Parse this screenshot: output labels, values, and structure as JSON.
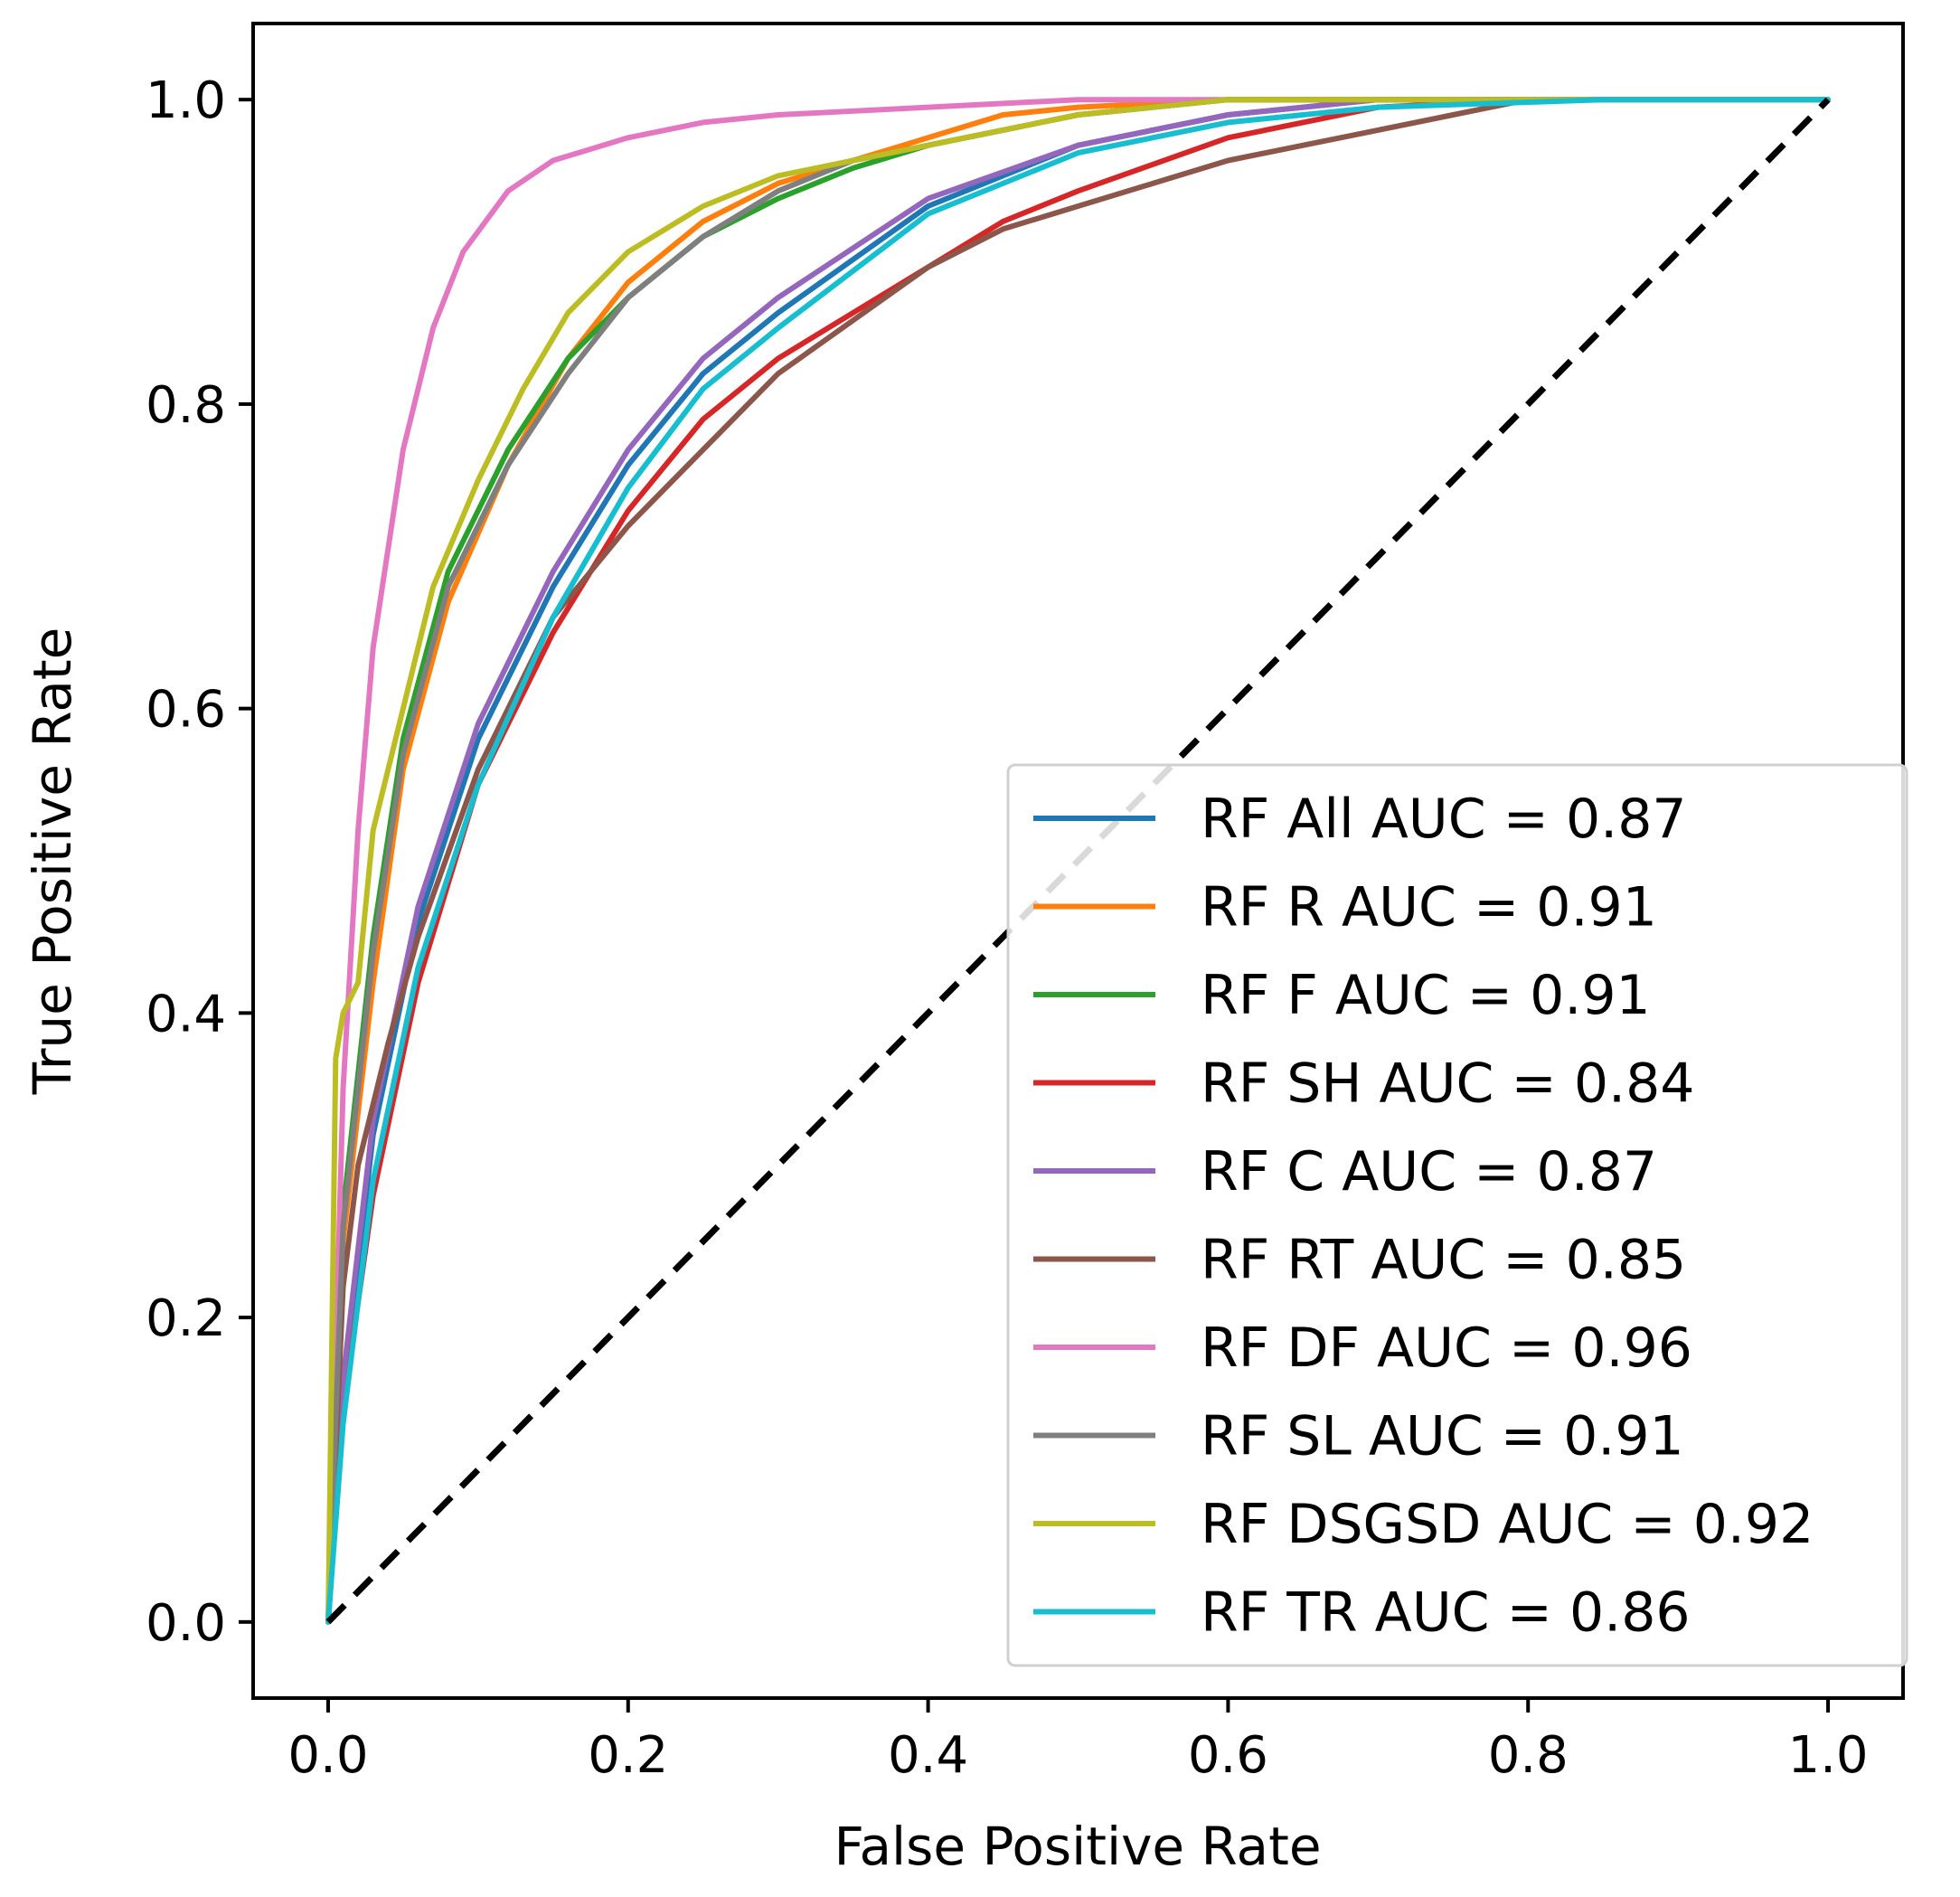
{
  "chart_data": {
    "type": "line",
    "title": "",
    "xlabel": "False Positive Rate",
    "ylabel": "True Positive Rate",
    "xlim": [
      -0.05,
      1.05
    ],
    "ylim": [
      -0.05,
      1.05
    ],
    "xticks": [
      0.0,
      0.2,
      0.4,
      0.6,
      0.8,
      1.0
    ],
    "yticks": [
      0.0,
      0.2,
      0.4,
      0.6,
      0.8,
      1.0
    ],
    "xtick_labels": [
      "0.0",
      "0.2",
      "0.4",
      "0.6",
      "0.8",
      "1.0"
    ],
    "ytick_labels": [
      "0.0",
      "0.2",
      "0.4",
      "0.6",
      "0.8",
      "1.0"
    ],
    "grid": false,
    "legend_position": "bottom-right",
    "reference_line": {
      "name": "chance",
      "x": [
        0,
        1
      ],
      "y": [
        0,
        1
      ],
      "color": "#000000",
      "style": "dashed"
    },
    "series": [
      {
        "name": "RF All AUC = 0.87",
        "color": "#1f77b4",
        "x": [
          0,
          0.01,
          0.03,
          0.06,
          0.1,
          0.15,
          0.2,
          0.25,
          0.3,
          0.4,
          0.5,
          0.6,
          0.7,
          0.85,
          1.0
        ],
        "y": [
          0,
          0.15,
          0.32,
          0.46,
          0.58,
          0.68,
          0.76,
          0.82,
          0.86,
          0.93,
          0.97,
          0.99,
          1.0,
          1.0,
          1.0
        ]
      },
      {
        "name": "RF R AUC = 0.91",
        "color": "#ff7f0e",
        "x": [
          0,
          0.01,
          0.03,
          0.05,
          0.08,
          0.12,
          0.16,
          0.2,
          0.25,
          0.3,
          0.35,
          0.4,
          0.45,
          0.5,
          0.6,
          1.0
        ],
        "y": [
          0,
          0.25,
          0.42,
          0.56,
          0.67,
          0.76,
          0.83,
          0.88,
          0.92,
          0.945,
          0.96,
          0.975,
          0.99,
          0.995,
          1.0,
          1.0
        ]
      },
      {
        "name": "RF F AUC = 0.91",
        "color": "#2ca02c",
        "x": [
          0,
          0.01,
          0.03,
          0.05,
          0.08,
          0.12,
          0.16,
          0.2,
          0.25,
          0.3,
          0.35,
          0.4,
          0.45,
          0.5,
          0.6,
          1.0
        ],
        "y": [
          0,
          0.27,
          0.45,
          0.58,
          0.69,
          0.77,
          0.83,
          0.87,
          0.91,
          0.935,
          0.955,
          0.97,
          0.98,
          0.99,
          1.0,
          1.0
        ]
      },
      {
        "name": "RF SH AUC = 0.84",
        "color": "#d62728",
        "x": [
          0,
          0.01,
          0.03,
          0.06,
          0.1,
          0.15,
          0.2,
          0.25,
          0.3,
          0.35,
          0.4,
          0.45,
          0.5,
          0.6,
          0.7,
          0.8,
          1.0
        ],
        "y": [
          0,
          0.14,
          0.28,
          0.42,
          0.55,
          0.65,
          0.73,
          0.79,
          0.83,
          0.86,
          0.89,
          0.92,
          0.94,
          0.975,
          0.995,
          1.0,
          1.0
        ]
      },
      {
        "name": "RF C AUC = 0.87",
        "color": "#9467bd",
        "x": [
          0,
          0.01,
          0.03,
          0.06,
          0.1,
          0.15,
          0.2,
          0.25,
          0.3,
          0.4,
          0.5,
          0.6,
          0.7,
          0.85,
          1.0
        ],
        "y": [
          0,
          0.16,
          0.33,
          0.47,
          0.59,
          0.69,
          0.77,
          0.83,
          0.87,
          0.935,
          0.97,
          0.99,
          1.0,
          1.0,
          1.0
        ]
      },
      {
        "name": "RF RT AUC = 0.85",
        "color": "#8c564b",
        "x": [
          0,
          0.01,
          0.02,
          0.04,
          0.06,
          0.1,
          0.15,
          0.2,
          0.25,
          0.3,
          0.35,
          0.4,
          0.45,
          0.5,
          0.55,
          0.6,
          0.65,
          0.7,
          0.75,
          0.8,
          0.85,
          1.0
        ],
        "y": [
          0,
          0.22,
          0.3,
          0.38,
          0.45,
          0.56,
          0.66,
          0.72,
          0.77,
          0.82,
          0.855,
          0.89,
          0.915,
          0.93,
          0.945,
          0.96,
          0.97,
          0.98,
          0.99,
          1.0,
          1.0,
          1.0
        ]
      },
      {
        "name": "RF DF AUC = 0.96",
        "color": "#e377c2",
        "x": [
          0,
          0.01,
          0.02,
          0.03,
          0.05,
          0.07,
          0.09,
          0.12,
          0.15,
          0.2,
          0.25,
          0.3,
          0.4,
          0.5,
          1.0
        ],
        "y": [
          0,
          0.35,
          0.52,
          0.64,
          0.77,
          0.85,
          0.9,
          0.94,
          0.96,
          0.975,
          0.985,
          0.99,
          0.995,
          1.0,
          1.0
        ]
      },
      {
        "name": "RF SL AUC = 0.91",
        "color": "#7f7f7f",
        "x": [
          0,
          0.01,
          0.03,
          0.05,
          0.08,
          0.12,
          0.16,
          0.2,
          0.25,
          0.3,
          0.35,
          0.4,
          0.45,
          0.5,
          0.6,
          1.0
        ],
        "y": [
          0,
          0.26,
          0.44,
          0.57,
          0.68,
          0.76,
          0.82,
          0.87,
          0.91,
          0.94,
          0.96,
          0.97,
          0.98,
          0.99,
          1.0,
          1.0
        ]
      },
      {
        "name": "RF DSGSD AUC = 0.92",
        "color": "#bcbd22",
        "x": [
          0,
          0.005,
          0.01,
          0.02,
          0.03,
          0.05,
          0.07,
          0.1,
          0.13,
          0.16,
          0.2,
          0.25,
          0.3,
          0.35,
          0.4,
          0.5,
          0.6,
          1.0
        ],
        "y": [
          0,
          0.37,
          0.4,
          0.42,
          0.52,
          0.6,
          0.68,
          0.75,
          0.81,
          0.86,
          0.9,
          0.93,
          0.95,
          0.96,
          0.97,
          0.99,
          1.0,
          1.0
        ]
      },
      {
        "name": "RF TR AUC = 0.86",
        "color": "#17becf",
        "x": [
          0,
          0.01,
          0.03,
          0.06,
          0.1,
          0.15,
          0.2,
          0.25,
          0.3,
          0.4,
          0.5,
          0.6,
          0.7,
          0.85,
          1.0
        ],
        "y": [
          0,
          0.13,
          0.29,
          0.43,
          0.55,
          0.66,
          0.745,
          0.81,
          0.85,
          0.925,
          0.965,
          0.985,
          0.995,
          1.0,
          1.0
        ]
      }
    ]
  }
}
